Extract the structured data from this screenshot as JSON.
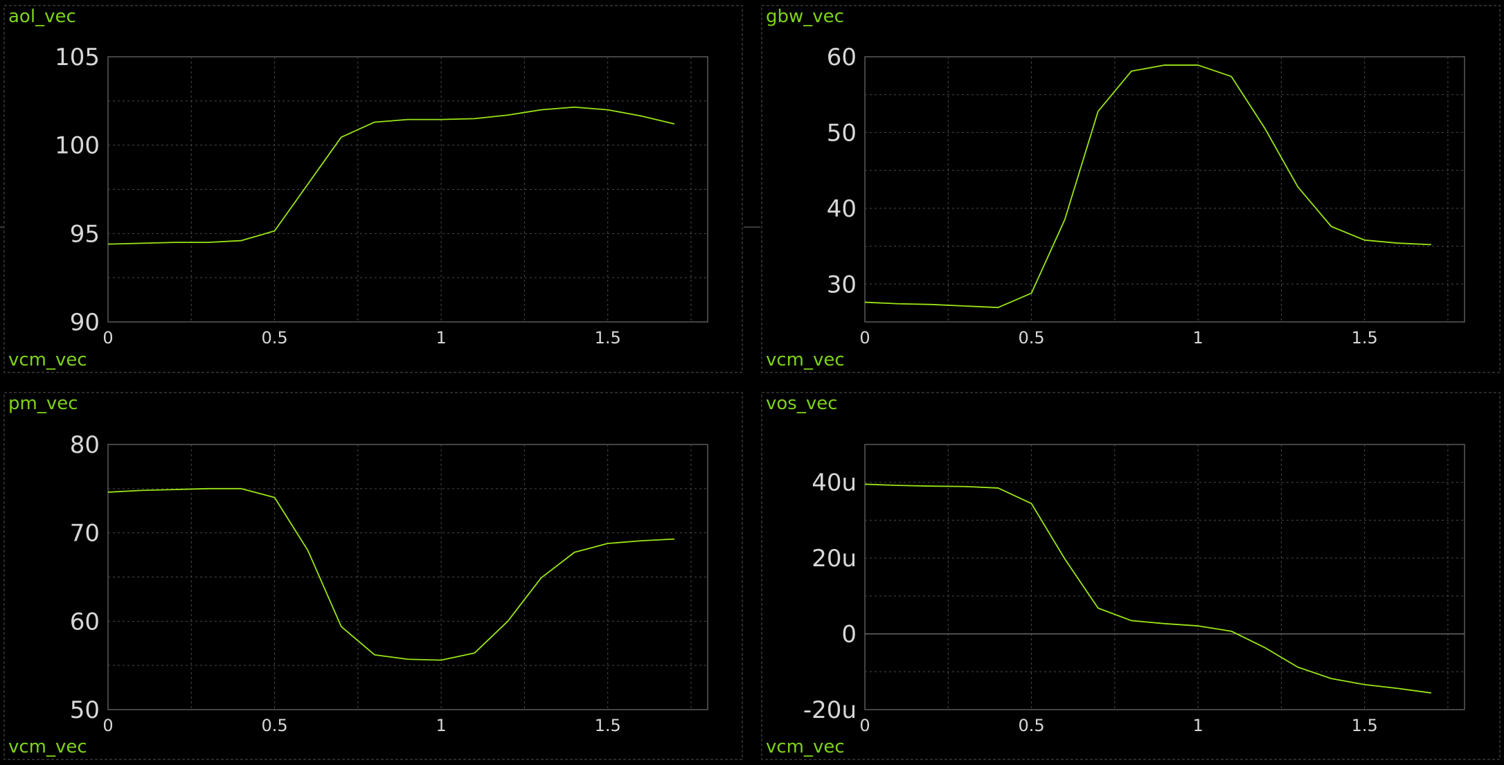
{
  "chart_data": [
    {
      "type": "line",
      "title": "aol_vec",
      "xlabel": "vcm_vec",
      "ylabel": "aol_vec",
      "x": [
        0,
        0.1,
        0.2,
        0.3,
        0.4,
        0.5,
        0.6,
        0.7,
        0.8,
        0.9,
        1.0,
        1.1,
        1.2,
        1.3,
        1.4,
        1.5,
        1.6,
        1.7
      ],
      "series": [
        {
          "values": [
            94.4,
            94.45,
            94.5,
            94.5,
            94.6,
            95.15,
            97.8,
            100.45,
            101.3,
            101.45,
            101.45,
            101.5,
            101.7,
            102.0,
            102.15,
            102.0,
            101.65,
            101.2
          ]
        }
      ],
      "xlim": [
        0,
        1.8
      ],
      "ylim": [
        90,
        105
      ],
      "xticks": [
        0,
        0.5,
        1,
        1.5
      ],
      "yticks": [
        90,
        95,
        100,
        105
      ],
      "xtick_labels": [
        "0",
        "0.5",
        "1",
        "1.5"
      ],
      "ytick_labels": [
        "90",
        "95",
        "100",
        "105"
      ],
      "color": "#9be616",
      "grid": true
    },
    {
      "type": "line",
      "title": "gbw_vec",
      "xlabel": "vcm_vec",
      "ylabel": "gbw_vec",
      "x": [
        0,
        0.1,
        0.2,
        0.3,
        0.4,
        0.5,
        0.6,
        0.7,
        0.8,
        0.9,
        1.0,
        1.1,
        1.2,
        1.3,
        1.4,
        1.5,
        1.6,
        1.7
      ],
      "series": [
        {
          "values": [
            27.6,
            27.4,
            27.3,
            27.1,
            26.9,
            28.8,
            38.5,
            52.8,
            58.1,
            58.9,
            58.9,
            57.4,
            50.6,
            42.8,
            37.6,
            35.8,
            35.4,
            35.2
          ]
        }
      ],
      "xlim": [
        0,
        1.8
      ],
      "ylim": [
        25,
        60
      ],
      "xticks": [
        0,
        0.5,
        1,
        1.5
      ],
      "yticks": [
        30,
        40,
        50,
        60
      ],
      "xtick_labels": [
        "0",
        "0.5",
        "1",
        "1.5"
      ],
      "ytick_labels": [
        "30",
        "40",
        "50",
        "60"
      ],
      "minor_y": [
        35,
        45,
        55
      ],
      "color": "#9be616",
      "grid": true
    },
    {
      "type": "line",
      "title": "pm_vec",
      "xlabel": "vcm_vec",
      "ylabel": "pm_vec",
      "x": [
        0,
        0.1,
        0.2,
        0.3,
        0.4,
        0.5,
        0.6,
        0.7,
        0.8,
        0.9,
        1.0,
        1.1,
        1.2,
        1.3,
        1.4,
        1.5,
        1.6,
        1.7
      ],
      "series": [
        {
          "values": [
            74.6,
            74.8,
            74.9,
            75.0,
            75.0,
            74.0,
            68.0,
            59.4,
            56.2,
            55.7,
            55.6,
            56.4,
            60.0,
            64.9,
            67.8,
            68.8,
            69.1,
            69.3
          ]
        }
      ],
      "xlim": [
        0,
        1.8
      ],
      "ylim": [
        50,
        80
      ],
      "xticks": [
        0,
        0.5,
        1,
        1.5
      ],
      "yticks": [
        50,
        60,
        70,
        80
      ],
      "xtick_labels": [
        "0",
        "0.5",
        "1",
        "1.5"
      ],
      "ytick_labels": [
        "50",
        "60",
        "70",
        "80"
      ],
      "color": "#9be616",
      "grid": true
    },
    {
      "type": "line",
      "title": "vos_vec",
      "xlabel": "vcm_vec",
      "ylabel": "vos_vec",
      "x": [
        0,
        0.1,
        0.2,
        0.3,
        0.4,
        0.5,
        0.6,
        0.7,
        0.8,
        0.9,
        1.0,
        1.1,
        1.2,
        1.3,
        1.4,
        1.5,
        1.6,
        1.7
      ],
      "series": [
        {
          "values": [
            3.95e-05,
            3.92e-05,
            3.9e-05,
            3.89e-05,
            3.85e-05,
            3.44e-05,
            1.98e-05,
            6.8e-06,
            3.5e-06,
            2.7e-06,
            2.1e-06,
            7e-07,
            -3.6e-06,
            -8.8e-06,
            -1.18e-05,
            -1.34e-05,
            -1.44e-05,
            -1.56e-05
          ]
        }
      ],
      "xlim": [
        0,
        1.8
      ],
      "ylim": [
        -2e-05,
        5e-05
      ],
      "xticks": [
        0,
        0.5,
        1,
        1.5
      ],
      "yticks": [
        -2e-05,
        0,
        2e-05,
        4e-05
      ],
      "xtick_labels": [
        "0",
        "0.5",
        "1",
        "1.5"
      ],
      "ytick_labels": [
        "-20u",
        "0",
        "20u",
        "40u"
      ],
      "minor_y": [
        -1e-05,
        1e-05,
        3e-05
      ],
      "zero_line": true,
      "color": "#9be616",
      "grid": true
    }
  ]
}
